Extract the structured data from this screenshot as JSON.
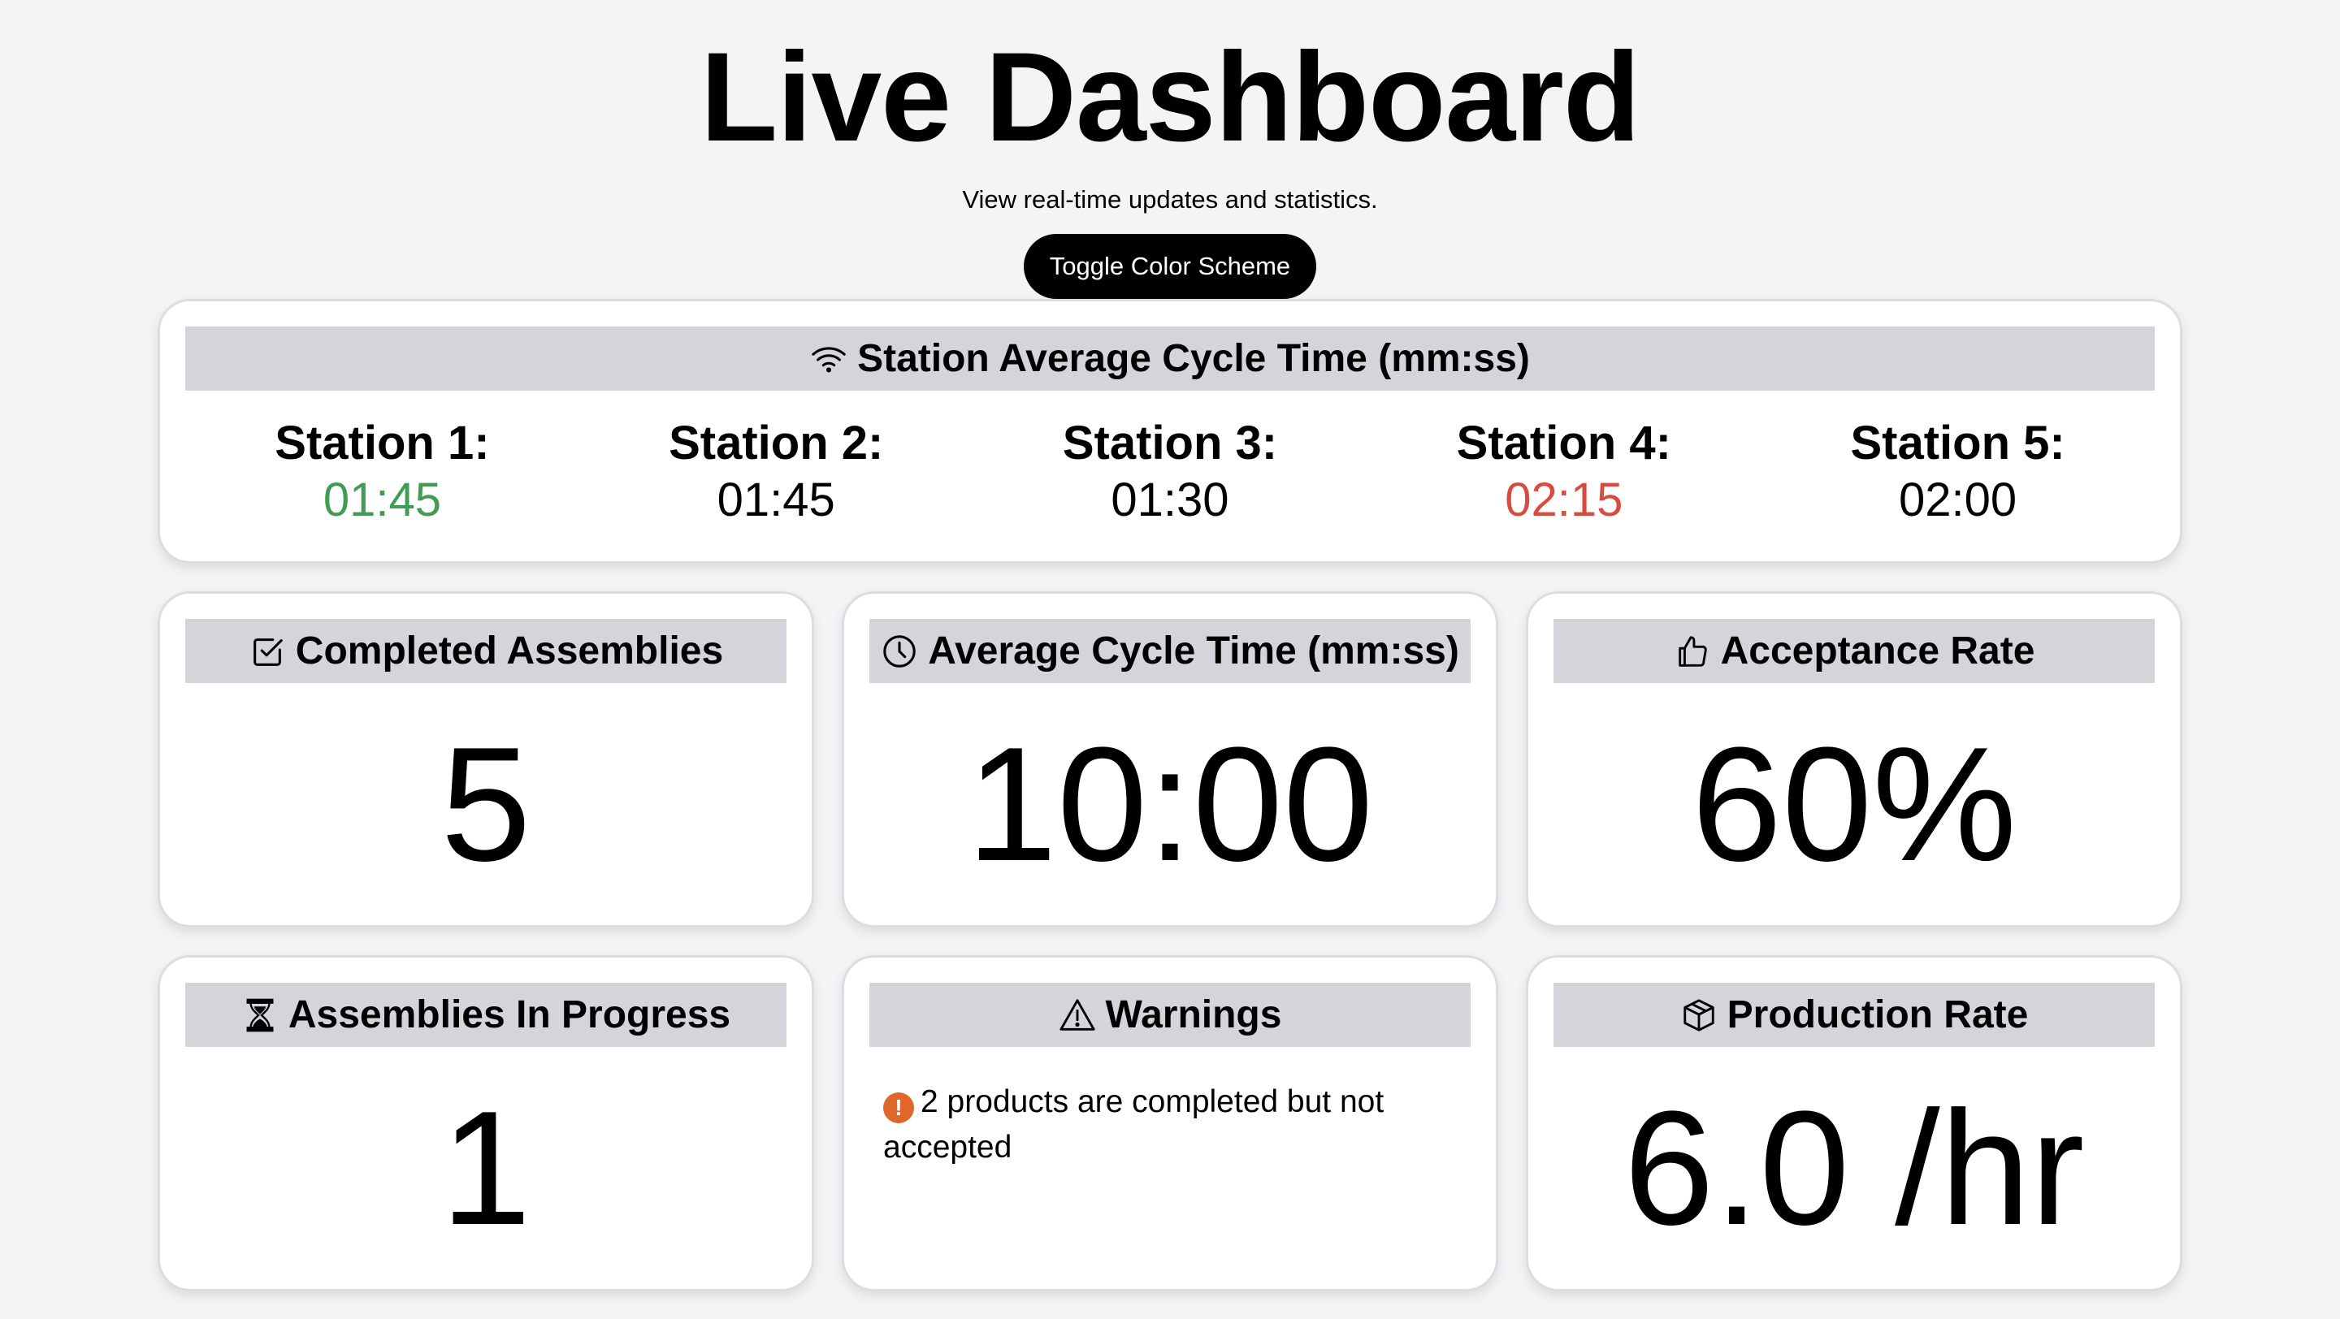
{
  "header": {
    "title": "Live Dashboard",
    "subtitle": "View real-time updates and statistics.",
    "toggle_label": "Toggle Color Scheme"
  },
  "stations_card": {
    "title": "Station Average Cycle Time (mm:ss)",
    "icon": "wifi-icon",
    "stations": [
      {
        "label": "Station 1:",
        "value": "01:45",
        "color": "#3f9c52"
      },
      {
        "label": "Station 2:",
        "value": "01:45",
        "color": "#000000"
      },
      {
        "label": "Station 3:",
        "value": "01:30",
        "color": "#000000"
      },
      {
        "label": "Station 4:",
        "value": "02:15",
        "color": "#d94b3f"
      },
      {
        "label": "Station 5:",
        "value": "02:00",
        "color": "#000000"
      }
    ]
  },
  "cards": {
    "completed": {
      "title": "Completed Assemblies",
      "icon": "checkbox-icon",
      "value": "5"
    },
    "avg_cycle": {
      "title": "Average Cycle Time (mm:ss)",
      "icon": "clock-icon",
      "value": "10:00"
    },
    "acceptance": {
      "title": "Acceptance Rate",
      "icon": "thumbs-up-icon",
      "value": "60%"
    },
    "in_progress": {
      "title": "Assemblies In Progress",
      "icon": "hourglass-icon",
      "value": "1"
    },
    "warnings": {
      "title": "Warnings",
      "icon": "warning-triangle-icon",
      "message": "2 products are completed but not accepted",
      "badge_color": "#e0672b"
    },
    "production": {
      "title": "Production Rate",
      "icon": "box-icon",
      "value": "6.0 /hr"
    }
  }
}
